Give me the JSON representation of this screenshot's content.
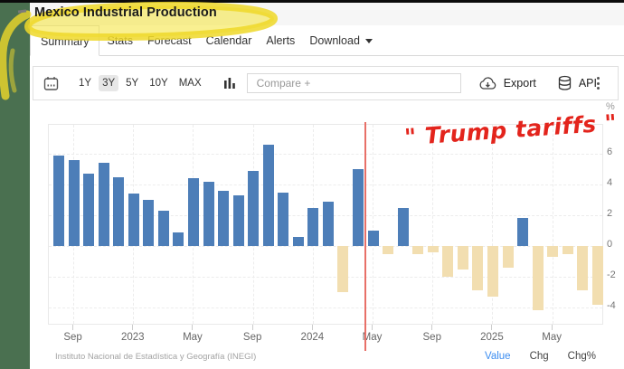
{
  "header": {
    "title": "Mexico Industrial Production"
  },
  "annotations": {
    "tariff_label": "\" Trump tariffs \"",
    "highlight_color": "#eed829",
    "red_line_color": "#e87068",
    "red_line_at_category": "May 2024"
  },
  "tabs": [
    {
      "label": "Summary",
      "active": true
    },
    {
      "label": "Stats",
      "active": false
    },
    {
      "label": "Forecast",
      "active": false
    },
    {
      "label": "Calendar",
      "active": false
    },
    {
      "label": "Alerts",
      "active": false
    },
    {
      "label": "Download",
      "active": false,
      "has_dropdown": true
    }
  ],
  "toolbar": {
    "ranges": [
      "1Y",
      "3Y",
      "5Y",
      "10Y",
      "MAX"
    ],
    "selected_range": "3Y",
    "compare_placeholder": "Compare +",
    "export_label": "Export",
    "api_label": "API",
    "icons": [
      "calendar-icon",
      "bar-chart-icon",
      "cloud-download-icon",
      "database-icon",
      "kebab-menu-icon"
    ]
  },
  "chart_data": {
    "type": "bar",
    "title": "Mexico Industrial Production",
    "ylabel": "%",
    "xlabel": "",
    "ylim": [
      -5.1,
      7.9
    ],
    "grid": true,
    "positive_color": "#4d7eb8",
    "negative_color": "#f2deb0",
    "categories": [
      "Aug 2022",
      "Sep 2022",
      "Oct 2022",
      "Nov 2022",
      "Dec 2022",
      "Jan 2023",
      "Feb 2023",
      "Mar 2023",
      "Apr 2023",
      "May 2023",
      "Jun 2023",
      "Jul 2023",
      "Aug 2023",
      "Sep 2023",
      "Oct 2023",
      "Nov 2023",
      "Dec 2023",
      "Jan 2024",
      "Feb 2024",
      "Mar 2024",
      "Apr 2024",
      "May 2024",
      "Jun 2024",
      "Jul 2024",
      "Aug 2024",
      "Sep 2024",
      "Oct 2024",
      "Nov 2024",
      "Dec 2024",
      "Jan 2025",
      "Feb 2025",
      "Mar 2025",
      "Apr 2025",
      "May 2025",
      "Jun 2025",
      "Jul 2025",
      "Aug 2025"
    ],
    "values": [
      5.9,
      5.6,
      4.7,
      5.4,
      4.5,
      3.4,
      3.0,
      2.3,
      0.9,
      4.4,
      4.2,
      3.6,
      3.3,
      4.9,
      6.6,
      3.5,
      0.6,
      2.5,
      2.9,
      -3.0,
      5.0,
      1.0,
      -0.5,
      2.5,
      -0.5,
      -0.4,
      -2.0,
      -1.5,
      -2.9,
      -3.3,
      -1.4,
      1.8,
      -4.2,
      -0.7,
      -0.5,
      -2.9,
      -3.8
    ],
    "yticks": [
      6,
      4,
      2,
      0,
      -2,
      -4
    ],
    "xticks": [
      {
        "label": "Sep",
        "index": 1
      },
      {
        "label": "2023",
        "index": 5
      },
      {
        "label": "May",
        "index": 9
      },
      {
        "label": "Sep",
        "index": 13
      },
      {
        "label": "2024",
        "index": 17
      },
      {
        "label": "May",
        "index": 21
      },
      {
        "label": "Sep",
        "index": 25
      },
      {
        "label": "2025",
        "index": 29
      },
      {
        "label": "May",
        "index": 33
      }
    ],
    "legend": []
  },
  "footer": {
    "source": "Instituto Nacional de Estadística y Geografía (INEGI)",
    "links": [
      {
        "label": "Value",
        "active": true
      },
      {
        "label": "Chg",
        "active": false
      },
      {
        "label": "Chg%",
        "active": false
      }
    ]
  }
}
